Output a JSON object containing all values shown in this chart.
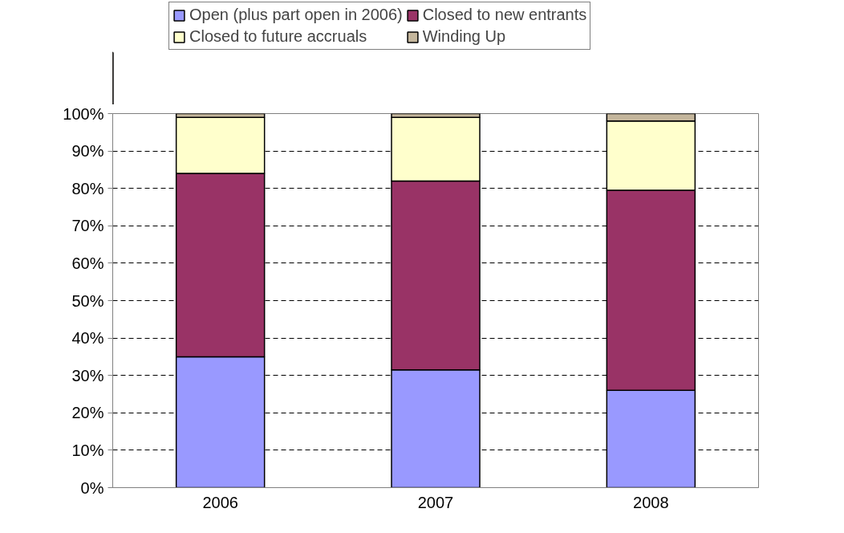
{
  "chart_data": {
    "type": "bar",
    "stacked": true,
    "categories": [
      "2006",
      "2007",
      "2008"
    ],
    "series": [
      {
        "name": "Open (plus part open in 2006)",
        "color": "#9999ff",
        "values": [
          35,
          31.5,
          26
        ]
      },
      {
        "name": "Closed to new entrants",
        "color": "#993366",
        "values": [
          49,
          50.5,
          53.5
        ]
      },
      {
        "name": "Closed to future accruals",
        "color": "#ffffcc",
        "values": [
          15,
          17,
          18.5
        ]
      },
      {
        "name": "Winding Up",
        "color": "#c4b69c",
        "values": [
          1,
          1,
          2
        ]
      }
    ],
    "ylim": [
      0,
      100
    ],
    "yticks": [
      {
        "value": 0,
        "label": "0%"
      },
      {
        "value": 10,
        "label": "10%"
      },
      {
        "value": 20,
        "label": "20%"
      },
      {
        "value": 30,
        "label": "30%"
      },
      {
        "value": 40,
        "label": "40%"
      },
      {
        "value": 50,
        "label": "50%"
      },
      {
        "value": 60,
        "label": "60%"
      },
      {
        "value": 70,
        "label": "70%"
      },
      {
        "value": 80,
        "label": "80%"
      },
      {
        "value": 90,
        "label": "90%"
      },
      {
        "value": 100,
        "label": "100%"
      }
    ],
    "grid": "y",
    "legend": "top"
  }
}
